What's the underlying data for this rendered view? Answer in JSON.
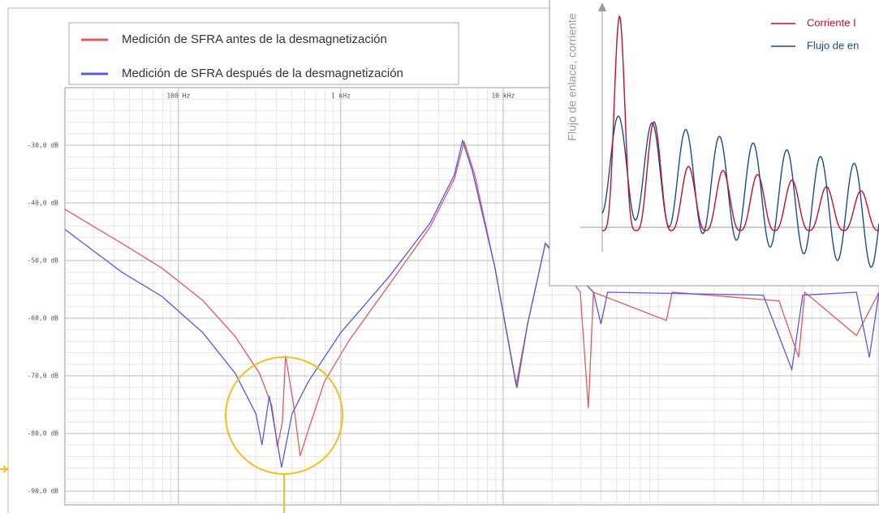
{
  "chart_data": {
    "type": "line",
    "xscale": "log",
    "grid": true,
    "xlim": [
      20,
      2065000
    ],
    "ylim": [
      -92.4,
      -20
    ],
    "xticks": [
      {
        "value": 100,
        "label": "100 Hz"
      },
      {
        "value": 1000,
        "label": "1 kHz"
      },
      {
        "value": 10000,
        "label": "10 kHz"
      }
    ],
    "yticks": [
      {
        "value": -30,
        "label": "-30,0 dB"
      },
      {
        "value": -40,
        "label": "-40,0 dB"
      },
      {
        "value": -50,
        "label": "-50,0 dB"
      },
      {
        "value": -60,
        "label": "-60,0 dB"
      },
      {
        "value": -70,
        "label": "-70,0 dB"
      },
      {
        "value": -80,
        "label": "-80,0 dB"
      },
      {
        "value": -90,
        "label": "-90,0 dB"
      }
    ],
    "series": [
      {
        "name": "Medición de SFRA antes de la desmagnetización",
        "color": "#e05a5f",
        "x": [
          20,
          44.7,
          79,
          141,
          224,
          316,
          376,
          407,
          437,
          457,
          513,
          562,
          631,
          794,
          1122,
          1995,
          3548,
          5012,
          5754,
          6683,
          8913,
          12023,
          14125,
          18197,
          29854,
          33497,
          36000,
          101158,
          110000,
          500000,
          660693,
          720000,
          1500000,
          2065000
        ],
        "values": [
          -41.1,
          -47.0,
          -51.3,
          -56.9,
          -63.2,
          -69.6,
          -75.2,
          -82.3,
          -78.0,
          -66.5,
          -75.2,
          -83.9,
          -79.4,
          -71.0,
          -63.9,
          -54.1,
          -44.2,
          -35.8,
          -29.4,
          -35.1,
          -51.3,
          -71.7,
          -61.1,
          -47.0,
          -55.5,
          -75.6,
          -55.5,
          -60.4,
          -55.5,
          -57.0,
          -66.8,
          -55.5,
          -63.0,
          -55.5
        ]
      },
      {
        "name": "Medición de SFRA después de la desmagnetización",
        "color": "#5858e0",
        "x": [
          20,
          44.7,
          79,
          141,
          224,
          300,
          327,
          363,
          432,
          501,
          631,
          1000,
          1995,
          3548,
          5012,
          5623,
          6457,
          8913,
          12162,
          14125,
          18197,
          36000,
          40000,
          44000,
          400000,
          600000,
          700000,
          1500000,
          1800000,
          2065000
        ],
        "values": [
          -44.6,
          -52.0,
          -56.2,
          -62.5,
          -69.6,
          -76.6,
          -82.0,
          -73.5,
          -85.9,
          -76.6,
          -71.0,
          -62.5,
          -52.7,
          -43.5,
          -35.1,
          -29.2,
          -34.4,
          -51.3,
          -72.1,
          -61.1,
          -47.0,
          -55.5,
          -61.0,
          -55.5,
          -56.0,
          -68.9,
          -56.0,
          -55.5,
          -66.8,
          -55.5
        ]
      }
    ]
  },
  "inset": {
    "ylabel": "Flujo de enlace, corriente",
    "legend": [
      {
        "name": "Corriente I",
        "color": "#c0102a"
      },
      {
        "name": "Flujo de en",
        "color": "#1a4d8a"
      }
    ]
  }
}
